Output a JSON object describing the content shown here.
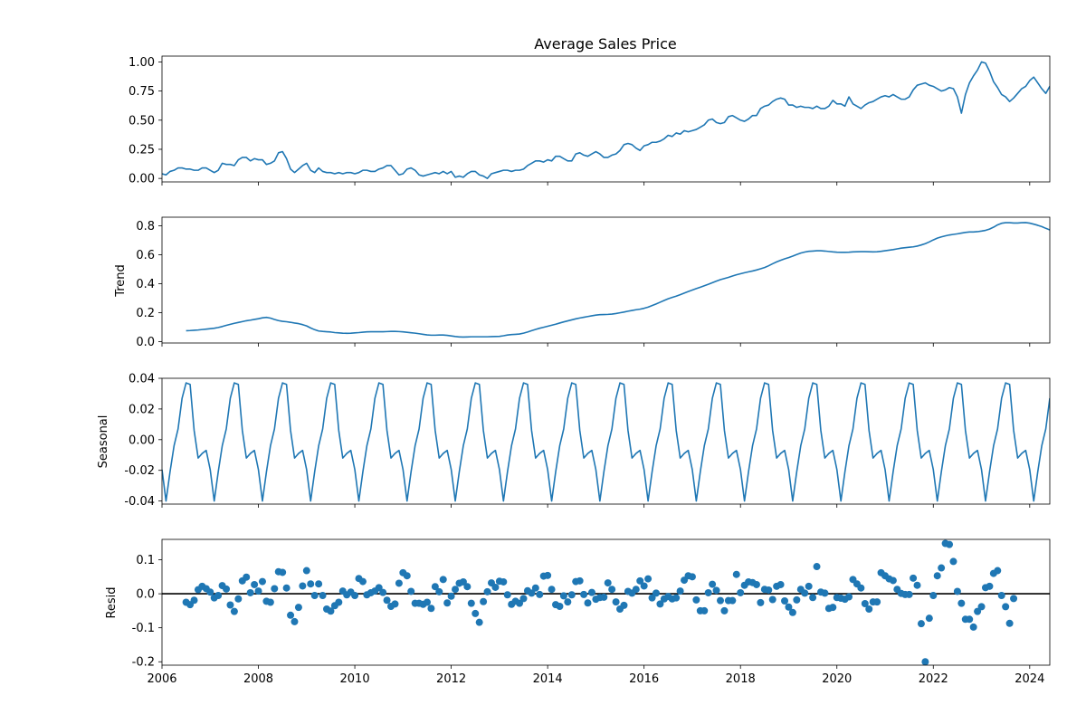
{
  "chart_data": {
    "type": "line",
    "kind": "seasonal-decomposition",
    "x_axis": {
      "type": "date",
      "range": [
        "2006-01",
        "2024-06"
      ],
      "ticks": [
        "2006",
        "2008",
        "2010",
        "2012",
        "2014",
        "2016",
        "2018",
        "2020",
        "2022",
        "2024"
      ]
    },
    "colors": {
      "series": "#1f77b4",
      "zero_line": "#000000",
      "axes": "#000000"
    },
    "panels": [
      {
        "id": "observed",
        "type": "line",
        "title": "Average Sales Price",
        "ylabel": "",
        "ylim": [
          -0.03,
          1.05
        ],
        "yticks": [
          "0.00",
          "0.25",
          "0.50",
          "0.75",
          "1.00"
        ],
        "x_start": "2006-01",
        "interval": "monthly",
        "values": [
          0.04,
          0.03,
          0.06,
          0.07,
          0.09,
          0.09,
          0.08,
          0.08,
          0.07,
          0.07,
          0.09,
          0.09,
          0.07,
          0.05,
          0.07,
          0.13,
          0.12,
          0.12,
          0.11,
          0.16,
          0.18,
          0.18,
          0.15,
          0.17,
          0.16,
          0.16,
          0.12,
          0.13,
          0.15,
          0.22,
          0.23,
          0.17,
          0.08,
          0.05,
          0.08,
          0.11,
          0.13,
          0.07,
          0.05,
          0.09,
          0.06,
          0.05,
          0.05,
          0.04,
          0.05,
          0.04,
          0.05,
          0.05,
          0.04,
          0.05,
          0.07,
          0.07,
          0.06,
          0.06,
          0.08,
          0.09,
          0.11,
          0.11,
          0.07,
          0.03,
          0.04,
          0.08,
          0.09,
          0.07,
          0.03,
          0.02,
          0.03,
          0.04,
          0.05,
          0.04,
          0.06,
          0.04,
          0.06,
          0.01,
          0.02,
          0.01,
          0.04,
          0.06,
          0.06,
          0.03,
          0.02,
          0.0,
          0.04,
          0.05,
          0.06,
          0.07,
          0.07,
          0.06,
          0.07,
          0.07,
          0.08,
          0.11,
          0.13,
          0.15,
          0.15,
          0.14,
          0.16,
          0.15,
          0.19,
          0.19,
          0.17,
          0.15,
          0.15,
          0.21,
          0.22,
          0.2,
          0.19,
          0.21,
          0.23,
          0.21,
          0.18,
          0.18,
          0.2,
          0.21,
          0.24,
          0.29,
          0.3,
          0.29,
          0.26,
          0.24,
          0.28,
          0.29,
          0.31,
          0.31,
          0.32,
          0.34,
          0.37,
          0.36,
          0.39,
          0.38,
          0.41,
          0.4,
          0.41,
          0.42,
          0.44,
          0.46,
          0.5,
          0.51,
          0.48,
          0.47,
          0.48,
          0.53,
          0.54,
          0.52,
          0.5,
          0.49,
          0.51,
          0.54,
          0.54,
          0.6,
          0.62,
          0.63,
          0.66,
          0.68,
          0.69,
          0.68,
          0.63,
          0.63,
          0.61,
          0.62,
          0.61,
          0.61,
          0.6,
          0.62,
          0.6,
          0.6,
          0.62,
          0.67,
          0.64,
          0.64,
          0.62,
          0.7,
          0.64,
          0.62,
          0.6,
          0.63,
          0.65,
          0.66,
          0.68,
          0.7,
          0.71,
          0.7,
          0.72,
          0.7,
          0.68,
          0.68,
          0.7,
          0.76,
          0.8,
          0.81,
          0.82,
          0.8,
          0.79,
          0.77,
          0.75,
          0.76,
          0.78,
          0.77,
          0.7,
          0.56,
          0.72,
          0.82,
          0.88,
          0.93,
          1.0,
          0.99,
          0.92,
          0.83,
          0.78,
          0.72,
          0.7,
          0.66,
          0.69,
          0.73,
          0.77,
          0.79,
          0.84,
          0.87,
          0.82,
          0.77,
          0.73,
          0.79,
          0.73,
          0.78,
          0.84,
          0.9,
          0.91,
          0.89
        ]
      },
      {
        "id": "trend",
        "type": "line",
        "ylabel": "Trend",
        "ylim": [
          -0.01,
          0.86
        ],
        "yticks": [
          "0.0",
          "0.2",
          "0.4",
          "0.6",
          "0.8"
        ],
        "x_start": "2006-07",
        "interval": "monthly",
        "values": [
          0.075,
          0.076,
          0.078,
          0.08,
          0.083,
          0.086,
          0.089,
          0.092,
          0.097,
          0.104,
          0.112,
          0.119,
          0.126,
          0.132,
          0.138,
          0.144,
          0.148,
          0.153,
          0.158,
          0.164,
          0.167,
          0.162,
          0.153,
          0.145,
          0.14,
          0.137,
          0.133,
          0.128,
          0.124,
          0.117,
          0.108,
          0.094,
          0.082,
          0.073,
          0.07,
          0.068,
          0.066,
          0.062,
          0.06,
          0.058,
          0.057,
          0.058,
          0.06,
          0.062,
          0.065,
          0.067,
          0.068,
          0.068,
          0.068,
          0.068,
          0.069,
          0.07,
          0.07,
          0.069,
          0.067,
          0.064,
          0.061,
          0.058,
          0.054,
          0.05,
          0.046,
          0.044,
          0.044,
          0.045,
          0.045,
          0.043,
          0.039,
          0.035,
          0.032,
          0.031,
          0.032,
          0.033,
          0.033,
          0.033,
          0.033,
          0.033,
          0.034,
          0.035,
          0.036,
          0.04,
          0.045,
          0.048,
          0.05,
          0.052,
          0.058,
          0.066,
          0.075,
          0.084,
          0.092,
          0.099,
          0.106,
          0.113,
          0.12,
          0.128,
          0.136,
          0.143,
          0.15,
          0.157,
          0.163,
          0.168,
          0.173,
          0.178,
          0.183,
          0.186,
          0.187,
          0.188,
          0.19,
          0.194,
          0.199,
          0.204,
          0.21,
          0.215,
          0.22,
          0.224,
          0.23,
          0.238,
          0.249,
          0.26,
          0.272,
          0.284,
          0.296,
          0.305,
          0.314,
          0.324,
          0.335,
          0.346,
          0.356,
          0.366,
          0.376,
          0.386,
          0.396,
          0.407,
          0.418,
          0.428,
          0.436,
          0.444,
          0.453,
          0.462,
          0.469,
          0.476,
          0.482,
          0.488,
          0.495,
          0.503,
          0.512,
          0.524,
          0.538,
          0.551,
          0.562,
          0.572,
          0.581,
          0.591,
          0.602,
          0.612,
          0.619,
          0.624,
          0.626,
          0.628,
          0.628,
          0.626,
          0.623,
          0.62,
          0.618,
          0.617,
          0.617,
          0.618,
          0.62,
          0.621,
          0.622,
          0.622,
          0.621,
          0.62,
          0.621,
          0.624,
          0.628,
          0.632,
          0.636,
          0.641,
          0.646,
          0.649,
          0.652,
          0.655,
          0.66,
          0.668,
          0.677,
          0.689,
          0.703,
          0.715,
          0.724,
          0.731,
          0.737,
          0.741,
          0.745,
          0.75,
          0.755,
          0.758,
          0.758,
          0.76,
          0.764,
          0.769,
          0.778,
          0.791,
          0.807,
          0.818,
          0.822,
          0.822,
          0.82,
          0.82,
          0.822,
          0.823,
          0.819,
          0.812,
          0.804,
          0.795,
          0.783,
          0.772,
          0.764,
          0.758,
          0.757,
          0.76,
          0.766,
          0.774,
          0.784,
          0.796,
          0.807,
          0.815
        ]
      },
      {
        "id": "seasonal",
        "type": "line",
        "ylabel": "Seasonal",
        "ylim": [
          -0.042,
          0.04
        ],
        "yticks": [
          "-0.04",
          "-0.02",
          "0.00",
          "0.02",
          "0.04"
        ],
        "x_start": "2006-01",
        "interval": "monthly",
        "pattern": [
          -0.0195,
          -0.04,
          -0.021,
          -0.004,
          0.007,
          0.027,
          0.037,
          0.036,
          0.006,
          -0.012,
          -0.009,
          -0.007
        ]
      },
      {
        "id": "resid",
        "type": "scatter",
        "ylabel": "Resid",
        "ylim": [
          -0.21,
          0.16
        ],
        "yticks": [
          "-0.2",
          "-0.1",
          "0.0",
          "0.1"
        ],
        "zero_line": true,
        "x_start": "2006-07",
        "interval": "monthly",
        "values": [
          -0.025,
          -0.032,
          -0.019,
          0.012,
          0.022,
          0.015,
          0.005,
          -0.012,
          -0.005,
          0.024,
          0.014,
          -0.033,
          -0.052,
          -0.015,
          0.038,
          0.049,
          0.003,
          0.027,
          0.008,
          0.036,
          -0.022,
          -0.025,
          0.015,
          0.065,
          0.063,
          0.017,
          -0.063,
          -0.082,
          -0.04,
          0.023,
          0.068,
          0.029,
          -0.005,
          0.029,
          -0.005,
          -0.045,
          -0.051,
          -0.035,
          -0.025,
          0.008,
          -0.003,
          0.005,
          -0.005,
          0.045,
          0.036,
          -0.003,
          0.003,
          0.008,
          0.018,
          0.004,
          -0.019,
          -0.037,
          -0.03,
          0.031,
          0.062,
          0.053,
          0.007,
          -0.028,
          -0.028,
          -0.031,
          -0.025,
          -0.043,
          0.021,
          0.006,
          0.042,
          -0.027,
          -0.007,
          0.013,
          0.031,
          0.035,
          0.021,
          -0.028,
          -0.058,
          -0.084,
          -0.023,
          0.006,
          0.032,
          0.019,
          0.037,
          0.035,
          -0.003,
          -0.031,
          -0.022,
          -0.028,
          -0.014,
          0.009,
          0.002,
          0.017,
          -0.002,
          0.052,
          0.054,
          0.013,
          -0.032,
          -0.037,
          -0.006,
          -0.024,
          -0.003,
          0.036,
          0.038,
          -0.002,
          -0.027,
          0.004,
          -0.016,
          -0.011,
          -0.01,
          0.032,
          0.013,
          -0.024,
          -0.045,
          -0.034,
          0.007,
          0.002,
          0.013,
          0.038,
          0.023,
          0.044,
          -0.012,
          0.002,
          -0.03,
          -0.015,
          -0.008,
          -0.015,
          -0.012,
          0.008,
          0.04,
          0.053,
          0.05,
          -0.018,
          -0.05,
          -0.05,
          0.003,
          0.028,
          0.01,
          -0.02,
          -0.05,
          -0.02,
          -0.02,
          0.057,
          0.003,
          0.025,
          0.035,
          0.033,
          0.027,
          -0.026,
          0.013,
          0.011,
          -0.017,
          0.022,
          0.027,
          -0.021,
          -0.039,
          -0.055,
          -0.018,
          0.013,
          0.002,
          0.022,
          -0.011,
          0.08,
          0.005,
          0.002,
          -0.043,
          -0.04,
          -0.011,
          -0.013,
          -0.016,
          -0.009,
          0.042,
          0.029,
          0.017,
          -0.029,
          -0.045,
          -0.024,
          -0.024,
          0.062,
          0.053,
          0.044,
          0.039,
          0.013,
          0.001,
          -0.002,
          -0.002,
          0.046,
          0.025,
          -0.088,
          -0.2,
          -0.072,
          -0.005,
          0.053,
          0.076,
          0.148,
          0.145,
          0.095,
          0.007,
          -0.028,
          -0.075,
          -0.075,
          -0.098,
          -0.052,
          -0.038,
          0.018,
          0.022,
          0.06,
          0.068,
          -0.005,
          -0.038,
          -0.087,
          -0.014
        ]
      }
    ]
  }
}
